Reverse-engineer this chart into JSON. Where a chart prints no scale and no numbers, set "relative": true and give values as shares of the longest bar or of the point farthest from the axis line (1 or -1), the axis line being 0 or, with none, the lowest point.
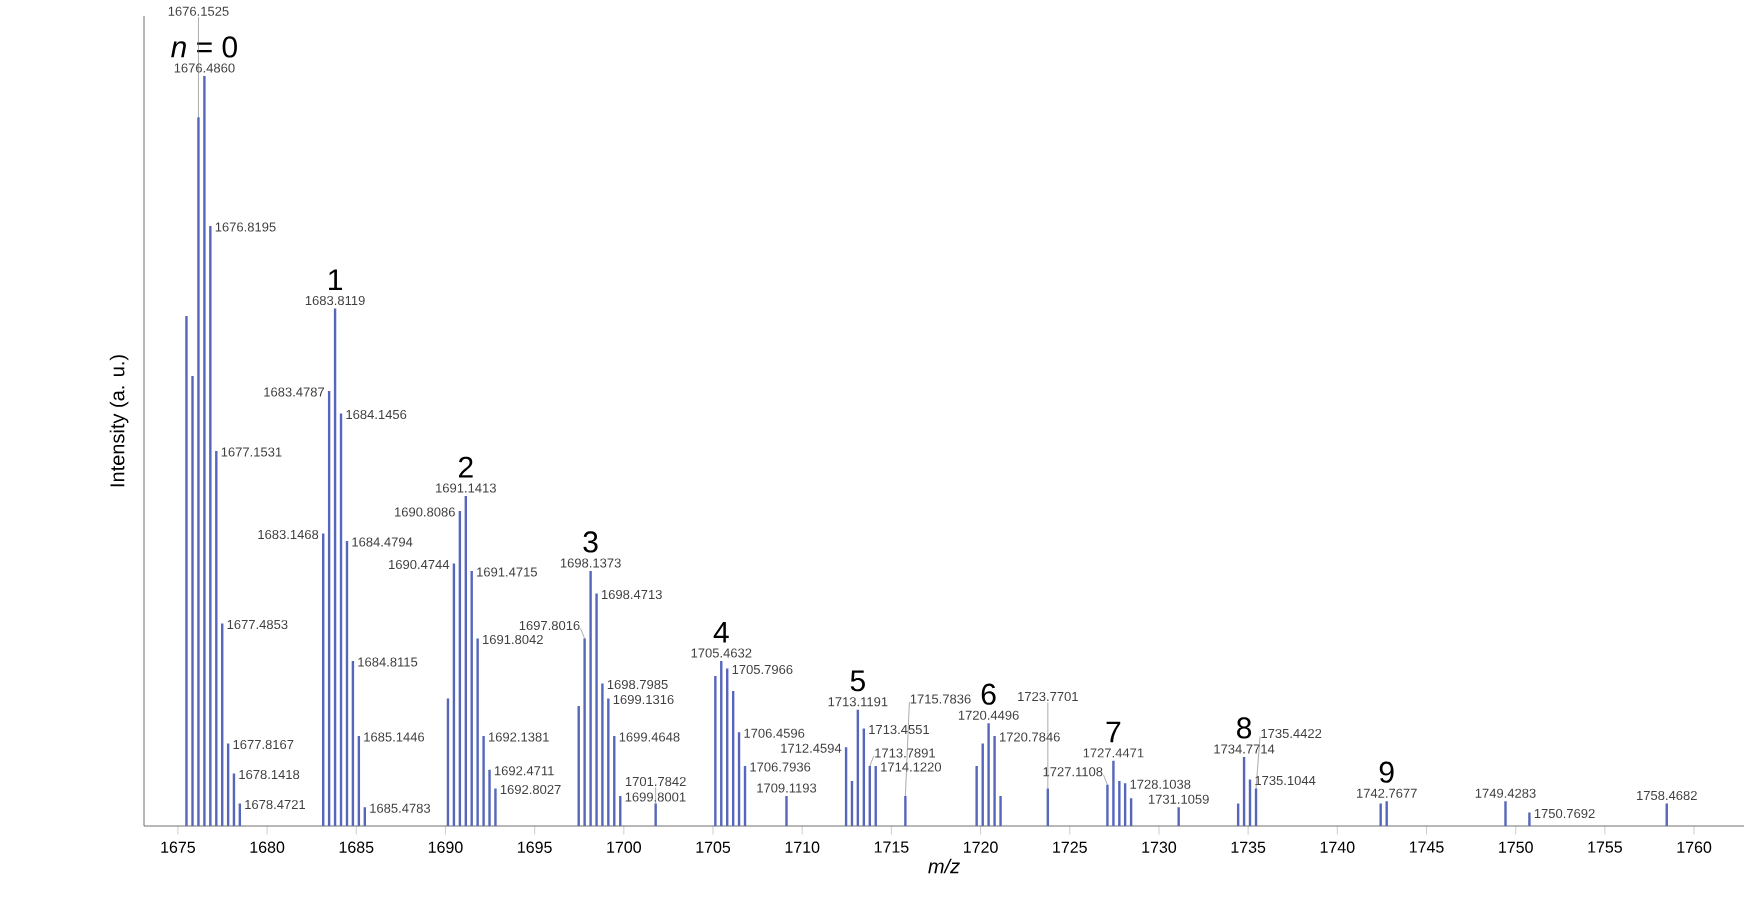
{
  "chart_data": {
    "type": "bar",
    "relative": true,
    "xlabel": "m/z",
    "ylabel": "Intensity (a. u.)",
    "color": "#5566bb",
    "xlim": [
      1673.1,
      1762.8
    ],
    "xticks": [
      1675,
      1680,
      1685,
      1690,
      1695,
      1700,
      1705,
      1710,
      1715,
      1720,
      1725,
      1730,
      1735,
      1740,
      1745,
      1750,
      1755,
      1760
    ],
    "x": [
      1675.48,
      1675.82,
      1676.1525,
      1676.486,
      1676.8195,
      1677.1531,
      1677.4853,
      1677.8167,
      1678.1418,
      1678.4721,
      1683.1468,
      1683.4787,
      1683.8119,
      1684.1456,
      1684.4794,
      1684.8115,
      1685.1446,
      1685.4783,
      1690.14,
      1690.4744,
      1690.8086,
      1691.1413,
      1691.4715,
      1691.8042,
      1692.1381,
      1692.4711,
      1692.8027,
      1697.47,
      1697.8016,
      1698.1373,
      1698.4713,
      1698.7985,
      1699.1316,
      1699.4648,
      1699.8001,
      1701.7842,
      1705.13,
      1705.4632,
      1705.7966,
      1706.13,
      1706.4596,
      1706.7936,
      1709.1193,
      1712.4594,
      1712.79,
      1713.1191,
      1713.4551,
      1713.7891,
      1714.122,
      1715.7836,
      1719.78,
      1720.12,
      1720.4496,
      1720.7846,
      1721.12,
      1723.7701,
      1727.1108,
      1727.4471,
      1727.78,
      1728.1038,
      1728.44,
      1731.1059,
      1734.44,
      1734.7714,
      1735.1044,
      1735.4422,
      1742.43,
      1742.7677,
      1749.4283,
      1750.7692,
      1758.4682
    ],
    "values": [
      0.68,
      0.6,
      0.945,
      1.0,
      0.8,
      0.5,
      0.27,
      0.11,
      0.07,
      0.03,
      0.39,
      0.58,
      0.69,
      0.55,
      0.38,
      0.22,
      0.12,
      0.025,
      0.17,
      0.35,
      0.42,
      0.44,
      0.34,
      0.25,
      0.12,
      0.075,
      0.05,
      0.16,
      0.25,
      0.34,
      0.31,
      0.19,
      0.17,
      0.12,
      0.04,
      0.03,
      0.2,
      0.22,
      0.21,
      0.18,
      0.125,
      0.08,
      0.04,
      0.105,
      0.06,
      0.155,
      0.13,
      0.08,
      0.08,
      0.04,
      0.08,
      0.11,
      0.137,
      0.12,
      0.04,
      0.05,
      0.055,
      0.087,
      0.06,
      0.057,
      0.037,
      0.025,
      0.03,
      0.092,
      0.062,
      0.05,
      0.03,
      0.033,
      0.033,
      0.018,
      0.03
    ],
    "annotations": [
      {
        "text": "1676.1525",
        "x": 1676.1525,
        "y": 0.945
      },
      {
        "text": "1676.4860",
        "x": 1676.486,
        "y": 1.0
      },
      {
        "text": "1676.8195",
        "x": 1676.8195,
        "y": 0.8
      },
      {
        "text": "1677.1531",
        "x": 1677.1531,
        "y": 0.5
      },
      {
        "text": "1677.4853",
        "x": 1677.4853,
        "y": 0.27
      },
      {
        "text": "1677.8167",
        "x": 1677.8167,
        "y": 0.11
      },
      {
        "text": "1678.1418",
        "x": 1678.1418,
        "y": 0.07
      },
      {
        "text": "1678.4721",
        "x": 1678.4721,
        "y": 0.03
      },
      {
        "text": "1683.1468",
        "x": 1683.1468,
        "y": 0.39
      },
      {
        "text": "1683.4787",
        "x": 1683.4787,
        "y": 0.58
      },
      {
        "text": "1683.8119",
        "x": 1683.8119,
        "y": 0.69
      },
      {
        "text": "1684.1456",
        "x": 1684.1456,
        "y": 0.55
      },
      {
        "text": "1684.4794",
        "x": 1684.4794,
        "y": 0.38
      },
      {
        "text": "1684.8115",
        "x": 1684.8115,
        "y": 0.22
      },
      {
        "text": "1685.1446",
        "x": 1685.1446,
        "y": 0.12
      },
      {
        "text": "1685.4783",
        "x": 1685.4783,
        "y": 0.025
      },
      {
        "text": "1690.4744",
        "x": 1690.4744,
        "y": 0.35
      },
      {
        "text": "1690.8086",
        "x": 1690.8086,
        "y": 0.42
      },
      {
        "text": "1691.1413",
        "x": 1691.1413,
        "y": 0.44
      },
      {
        "text": "1691.4715",
        "x": 1691.4715,
        "y": 0.34
      },
      {
        "text": "1691.8042",
        "x": 1691.8042,
        "y": 0.25
      },
      {
        "text": "1692.1381",
        "x": 1692.1381,
        "y": 0.12
      },
      {
        "text": "1692.4711",
        "x": 1692.4711,
        "y": 0.075
      },
      {
        "text": "1692.8027",
        "x": 1692.8027,
        "y": 0.05
      },
      {
        "text": "1697.8016",
        "x": 1697.8016,
        "y": 0.25
      },
      {
        "text": "1698.1373",
        "x": 1698.1373,
        "y": 0.34
      },
      {
        "text": "1698.4713",
        "x": 1698.4713,
        "y": 0.31
      },
      {
        "text": "1698.7985",
        "x": 1698.7985,
        "y": 0.19
      },
      {
        "text": "1699.1316",
        "x": 1699.1316,
        "y": 0.17
      },
      {
        "text": "1699.4648",
        "x": 1699.4648,
        "y": 0.12
      },
      {
        "text": "1699.8001",
        "x": 1699.8001,
        "y": 0.04
      },
      {
        "text": "1701.7842",
        "x": 1701.7842,
        "y": 0.03
      },
      {
        "text": "1705.4632",
        "x": 1705.4632,
        "y": 0.22
      },
      {
        "text": "1705.7966",
        "x": 1705.7966,
        "y": 0.21
      },
      {
        "text": "1706.4596",
        "x": 1706.4596,
        "y": 0.125
      },
      {
        "text": "1706.7936",
        "x": 1706.7936,
        "y": 0.08
      },
      {
        "text": "1709.1193",
        "x": 1709.1193,
        "y": 0.04
      },
      {
        "text": "1712.4594",
        "x": 1712.4594,
        "y": 0.105
      },
      {
        "text": "1713.1191",
        "x": 1713.1191,
        "y": 0.155
      },
      {
        "text": "1713.4551",
        "x": 1713.4551,
        "y": 0.13
      },
      {
        "text": "1713.7891",
        "x": 1713.7891,
        "y": 0.08
      },
      {
        "text": "1714.1220",
        "x": 1714.122,
        "y": 0.08
      },
      {
        "text": "1715.7836",
        "x": 1715.7836,
        "y": 0.04
      },
      {
        "text": "1720.4496",
        "x": 1720.4496,
        "y": 0.137
      },
      {
        "text": "1720.7846",
        "x": 1720.7846,
        "y": 0.12
      },
      {
        "text": "1723.7701",
        "x": 1723.7701,
        "y": 0.05
      },
      {
        "text": "1727.1108",
        "x": 1727.1108,
        "y": 0.055
      },
      {
        "text": "1727.4471",
        "x": 1727.4471,
        "y": 0.087
      },
      {
        "text": "1728.1038",
        "x": 1728.1038,
        "y": 0.057
      },
      {
        "text": "1731.1059",
        "x": 1731.1059,
        "y": 0.025
      },
      {
        "text": "1734.7714",
        "x": 1734.7714,
        "y": 0.092
      },
      {
        "text": "1735.1044",
        "x": 1735.1044,
        "y": 0.062
      },
      {
        "text": "1735.4422",
        "x": 1735.4422,
        "y": 0.05
      },
      {
        "text": "1742.7677",
        "x": 1742.7677,
        "y": 0.033
      },
      {
        "text": "1749.4283",
        "x": 1749.4283,
        "y": 0.033
      },
      {
        "text": "1750.7692",
        "x": 1750.7692,
        "y": 0.018
      },
      {
        "text": "1758.4682",
        "x": 1758.4682,
        "y": 0.03
      },
      {
        "text": "*n* = 0",
        "x": 1676.486,
        "y": 1.0
      },
      {
        "text": "1",
        "x": 1683.8119,
        "y": 0.69
      },
      {
        "text": "2",
        "x": 1691.1413,
        "y": 0.44
      },
      {
        "text": "3",
        "x": 1698.1373,
        "y": 0.34
      },
      {
        "text": "4",
        "x": 1705.4632,
        "y": 0.22
      },
      {
        "text": "5",
        "x": 1713.1191,
        "y": 0.155
      },
      {
        "text": "6",
        "x": 1720.4496,
        "y": 0.137
      },
      {
        "text": "7",
        "x": 1727.4471,
        "y": 0.087
      },
      {
        "text": "8",
        "x": 1734.7714,
        "y": 0.092
      },
      {
        "text": "9",
        "x": 1742.7677,
        "y": 0.033
      }
    ]
  }
}
